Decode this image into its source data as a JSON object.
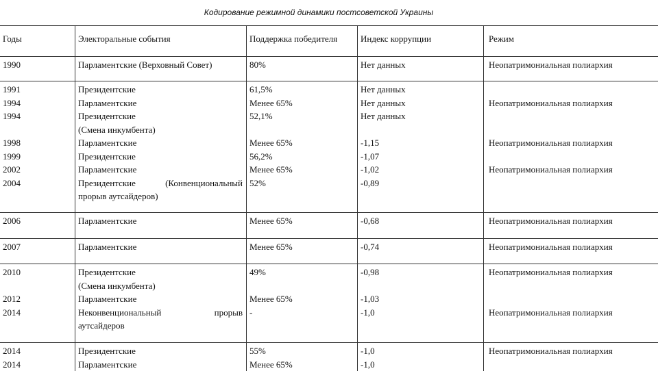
{
  "title": "Кодирование режимной динамики постсоветской Украины",
  "table": {
    "header": [
      "Годы",
      "Электоральные события",
      "Поддержка победителя",
      "Индекс коррупции",
      "Режим"
    ],
    "groups": [
      {
        "rows": [
          {
            "year": "1990",
            "event": [
              "Парламентские (Верховный Совет)"
            ],
            "support": "80%",
            "corruption": "Нет данных",
            "regime": "Неопатримониальная полиархия"
          }
        ]
      },
      {
        "rows": [
          {
            "year": "1991",
            "event": [
              "Президентские"
            ],
            "support": "61,5%",
            "corruption": "Нет данных"
          },
          {
            "year": "1994",
            "event": [
              "Парламентские"
            ],
            "support": "Менее 65%",
            "corruption": "Нет данных",
            "regime": "Неопатримониальная полиархия"
          },
          {
            "year": "1994",
            "event": [
              "Президентские",
              "(Смена инкумбента)"
            ],
            "support": "52,1%",
            "corruption": "Нет данных"
          },
          {
            "year": "1998",
            "event": [
              "Парламентские"
            ],
            "support": "Менее 65%",
            "corruption": "-1,15",
            "regime": "Неопатримониальная полиархия"
          },
          {
            "year": "1999",
            "event": [
              "Президентские"
            ],
            "support": "56,2%",
            "corruption": "-1,07"
          },
          {
            "year": "2002",
            "event": [
              "Парламентские"
            ],
            "support": "Менее 65%",
            "corruption": "-1,02",
            "regime": "Неопатримониальная полиархия"
          },
          {
            "year": "2004",
            "event": [
              "Президентские (Конвенциональный",
              "прорыв аутсайдеров)"
            ],
            "support": "52%",
            "corruption": "-0,89"
          }
        ]
      },
      {
        "rows": [
          {
            "year": "2006",
            "event": [
              "Парламентские"
            ],
            "support": "Менее 65%",
            "corruption": "-0,68",
            "regime": "Неопатримониальная полиархия"
          }
        ]
      },
      {
        "rows": [
          {
            "year": "2007",
            "event": [
              "Парламентские"
            ],
            "support": "Менее 65%",
            "corruption": "-0,74",
            "regime": "Неопатримониальная полиархия"
          }
        ]
      },
      {
        "rows": [
          {
            "year": "2010",
            "event": [
              "Президентские",
              "(Смена инкумбента)"
            ],
            "support": "49%",
            "corruption": "-0,98",
            "regime": "Неопатримониальная полиархия"
          },
          {
            "year": "2012",
            "event": [
              "Парламентские"
            ],
            "support": "Менее 65%",
            "corruption": "-1,03"
          },
          {
            "year": "2014",
            "event": [
              "Неконвенциональный прорыв",
              "аутсайдеров"
            ],
            "support": "-",
            "corruption": "-1,0",
            "regime": "Неопатримониальная полиархия"
          }
        ]
      },
      {
        "rows": [
          {
            "year": "2014",
            "event": [
              "Президентские"
            ],
            "support": "55%",
            "corruption": "-1,0",
            "regime": "Неопатримониальная полиархия"
          },
          {
            "year": "2014",
            "event": [
              "Парламентские"
            ],
            "support": "Менее 65%",
            "corruption": "-1,0"
          }
        ]
      }
    ]
  }
}
